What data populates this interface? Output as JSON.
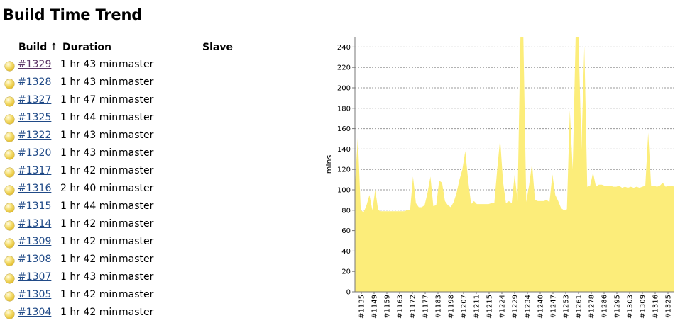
{
  "page_title": "Build Time Trend",
  "table": {
    "headers": {
      "build": "Build",
      "sort_indicator": "↑",
      "duration": "Duration",
      "slave": "Slave"
    },
    "rows": [
      {
        "build": "#1329",
        "duration": "1 hr 43 min",
        "slave": "master",
        "visited": true
      },
      {
        "build": "#1328",
        "duration": "1 hr 43 min",
        "slave": "master"
      },
      {
        "build": "#1327",
        "duration": "1 hr 47 min",
        "slave": "master"
      },
      {
        "build": "#1325",
        "duration": "1 hr 44 min",
        "slave": "master"
      },
      {
        "build": "#1322",
        "duration": "1 hr 43 min",
        "slave": "master"
      },
      {
        "build": "#1320",
        "duration": "1 hr 43 min",
        "slave": "master"
      },
      {
        "build": "#1317",
        "duration": "1 hr 42 min",
        "slave": "master"
      },
      {
        "build": "#1316",
        "duration": "2 hr 40 min",
        "slave": "master"
      },
      {
        "build": "#1315",
        "duration": "1 hr 44 min",
        "slave": "master"
      },
      {
        "build": "#1314",
        "duration": "1 hr 42 min",
        "slave": "master"
      },
      {
        "build": "#1309",
        "duration": "1 hr 42 min",
        "slave": "master"
      },
      {
        "build": "#1308",
        "duration": "1 hr 42 min",
        "slave": "master"
      },
      {
        "build": "#1307",
        "duration": "1 hr 43 min",
        "slave": "master"
      },
      {
        "build": "#1305",
        "duration": "1 hr 42 min",
        "slave": "master"
      },
      {
        "build": "#1304",
        "duration": "1 hr 42 min",
        "slave": "master"
      }
    ]
  },
  "colors": {
    "link": "#204a87",
    "visited_link": "#5c3566",
    "area_fill": "#fced7a",
    "status_ball": "#f2d84a"
  },
  "icons": {
    "status": "yellow-ball-icon"
  },
  "chart_data": {
    "type": "area",
    "ylabel": "mins",
    "ylim": [
      0,
      250
    ],
    "yticks": [
      0,
      20,
      40,
      60,
      80,
      100,
      120,
      140,
      160,
      180,
      200,
      220,
      240
    ],
    "grid": true,
    "x_tick_labels": [
      "#1135",
      "#1149",
      "#1159",
      "#1163",
      "#1172",
      "#1177",
      "#1183",
      "#1198",
      "#1207",
      "#1211",
      "#1215",
      "#1224",
      "#1229",
      "#1234",
      "#1240",
      "#1247",
      "#1253",
      "#1261",
      "#1278",
      "#1286",
      "#1295",
      "#1303",
      "#1309",
      "#1316",
      "#1325"
    ],
    "series": [
      {
        "values": [
          104,
          152,
          80,
          78,
          85,
          95,
          80,
          100,
          80,
          79,
          79,
          79,
          79,
          79,
          79,
          79,
          79,
          79,
          80,
          80,
          113,
          87,
          83,
          83,
          85,
          97,
          113,
          84,
          85,
          109,
          107,
          89,
          85,
          83,
          88,
          97,
          110,
          120,
          138,
          109,
          86,
          89,
          86,
          86,
          86,
          86,
          86,
          87,
          87,
          120,
          150,
          108,
          87,
          89,
          87,
          115,
          89,
          250,
          250,
          88,
          105,
          126,
          90,
          89,
          89,
          89,
          90,
          88,
          115,
          95,
          89,
          82,
          80,
          81,
          178,
          120,
          250,
          250,
          140,
          241,
          103,
          104,
          117,
          103,
          105,
          105,
          104,
          104,
          104,
          103,
          103,
          104,
          102,
          103,
          102,
          103,
          102,
          103,
          102,
          103,
          104,
          156,
          104,
          104,
          103,
          104,
          107,
          103,
          104,
          104,
          103
        ]
      }
    ]
  }
}
